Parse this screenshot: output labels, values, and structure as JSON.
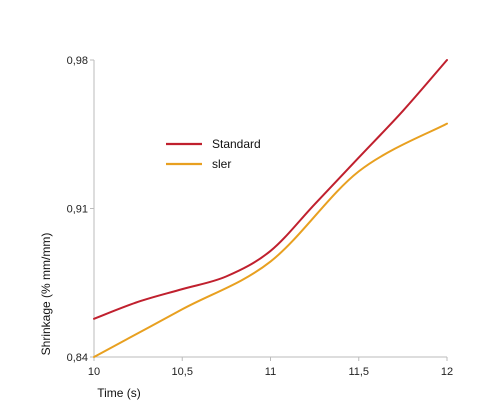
{
  "chart_data": {
    "type": "line",
    "xlabel": "Time (s)",
    "ylabel": "Shrinkage (% mm/mm)",
    "xlim": [
      10,
      12
    ],
    "ylim": [
      0.84,
      0.98
    ],
    "x_ticks": [
      10,
      10.5,
      11,
      11.5,
      12
    ],
    "x_tick_labels": [
      "10",
      "10,5",
      "11",
      "11,5",
      "12"
    ],
    "y_ticks": [
      0.84,
      0.91,
      0.98
    ],
    "y_tick_labels": [
      "0,84",
      "0,91",
      "0,98"
    ],
    "grid": false,
    "legend_position": "upper-left",
    "series": [
      {
        "name": "Standard",
        "color": "#c0202e",
        "x": [
          10,
          10.25,
          10.5,
          10.75,
          11,
          11.25,
          11.5,
          11.75,
          12
        ],
        "y": [
          0.858,
          0.866,
          0.872,
          0.878,
          0.89,
          0.912,
          0.934,
          0.956,
          0.98
        ]
      },
      {
        "name": "sler",
        "color": "#e8a020",
        "x": [
          10,
          10.5,
          11,
          11.5,
          12
        ],
        "y": [
          0.84,
          0.8625,
          0.885,
          0.9275,
          0.95
        ]
      }
    ]
  }
}
